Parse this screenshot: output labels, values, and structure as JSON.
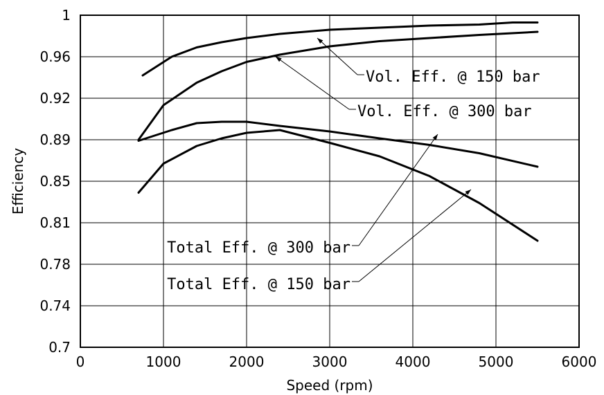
{
  "chart_data": {
    "type": "line",
    "xlabel": "Speed (rpm)",
    "ylabel": "Efficiency",
    "xlim": [
      0,
      6000
    ],
    "ylim": [
      0.7,
      1.0
    ],
    "x_ticks": [
      0,
      1000,
      2000,
      3000,
      4000,
      5000,
      6000
    ],
    "y_tick_labels": [
      "0.7",
      "0.74",
      "0.78",
      "0.81",
      "0.85",
      "0.89",
      "0.92",
      "0.96",
      "1"
    ],
    "grid": true,
    "series": [
      {
        "name": "Vol. Eff. @ 150 bar",
        "x": [
          750,
          1100,
          1400,
          1700,
          2000,
          2400,
          3000,
          3600,
          4200,
          4800,
          5200,
          5500
        ],
        "y": [
          0.942,
          0.96,
          0.969,
          0.974,
          0.978,
          0.982,
          0.986,
          0.988,
          0.99,
          0.991,
          0.993,
          0.993
        ]
      },
      {
        "name": "Vol. Eff. @ 300 bar",
        "x": [
          700,
          1000,
          1400,
          1700,
          2000,
          2400,
          3000,
          3600,
          4200,
          4800,
          5500
        ],
        "y": [
          0.89,
          0.915,
          0.935,
          0.946,
          0.955,
          0.962,
          0.97,
          0.975,
          0.978,
          0.981,
          0.984
        ]
      },
      {
        "name": "Total Eff. @ 300 bar",
        "x": [
          700,
          1100,
          1400,
          1700,
          2000,
          2400,
          3000,
          3600,
          4200,
          4800,
          5500
        ],
        "y": [
          0.889,
          0.897,
          0.902,
          0.903,
          0.903,
          0.9,
          0.896,
          0.891,
          0.885,
          0.877,
          0.864
        ]
      },
      {
        "name": "Total Eff. @ 150 bar",
        "x": [
          700,
          1000,
          1400,
          1700,
          2000,
          2400,
          3000,
          3600,
          4200,
          4800,
          5500
        ],
        "y": [
          0.839,
          0.867,
          0.884,
          0.891,
          0.895,
          0.897,
          0.887,
          0.874,
          0.855,
          0.829,
          0.797
        ]
      }
    ],
    "annotations": [
      {
        "text": "Vol. Eff. @ 150 bar",
        "series": 0,
        "point_x": 2850,
        "point_y": 0.978
      },
      {
        "text": "Vol. Eff. @ 300 bar",
        "series": 1,
        "point_x": 2350,
        "point_y": 0.96
      },
      {
        "text": "Total Eff. @ 300 bar",
        "series": 2,
        "point_x": 4300,
        "point_y": 0.894
      },
      {
        "text": "Total Eff. @ 150 bar",
        "series": 3,
        "point_x": 4700,
        "point_y": 0.842
      }
    ]
  }
}
